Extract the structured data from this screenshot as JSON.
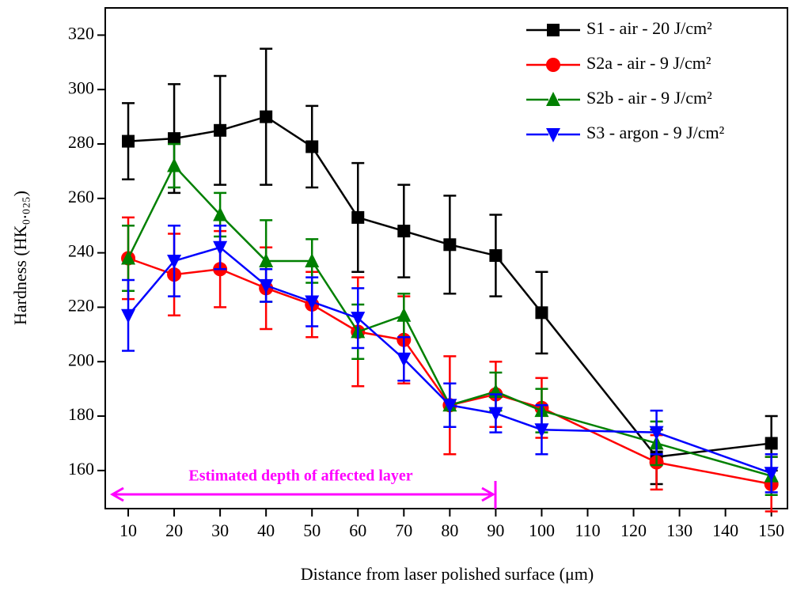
{
  "chart_data": {
    "type": "line",
    "xlabel": "Distance from laser polished surface (μm)",
    "ylabel": "Hardness (HK₀.₀₂₅)",
    "x": [
      10,
      20,
      30,
      40,
      50,
      60,
      70,
      80,
      90,
      100,
      125,
      150
    ],
    "series": [
      {
        "name": "S1 - air - 20 J/cm²",
        "color": "#000000",
        "marker": "square",
        "values": [
          281,
          282,
          285,
          290,
          279,
          253,
          248,
          243,
          239,
          218,
          165,
          170
        ],
        "errors": [
          14,
          20,
          20,
          25,
          15,
          20,
          17,
          18,
          15,
          15,
          10,
          10
        ]
      },
      {
        "name": "S2a - air - 9 J/cm²",
        "color": "#ff0000",
        "marker": "circle",
        "values": [
          238,
          232,
          234,
          227,
          221,
          211,
          208,
          184,
          188,
          183,
          163,
          155
        ],
        "errors": [
          15,
          15,
          14,
          15,
          12,
          20,
          16,
          18,
          12,
          11,
          10,
          10
        ]
      },
      {
        "name": "S2b - air - 9 J/cm²",
        "color": "#008000",
        "marker": "triangle-up",
        "values": [
          238,
          272,
          254,
          237,
          237,
          211,
          217,
          184,
          189,
          182,
          170,
          158
        ],
        "errors": [
          12,
          8,
          8,
          15,
          8,
          10,
          8,
          8,
          7,
          8,
          8,
          7
        ]
      },
      {
        "name": "S3 - argon - 9 J/cm²",
        "color": "#0000ff",
        "marker": "triangle-down",
        "values": [
          217,
          237,
          242,
          228,
          222,
          216,
          201,
          184,
          181,
          175,
          174,
          159
        ],
        "errors": [
          13,
          13,
          8,
          6,
          9,
          11,
          8,
          8,
          7,
          9,
          8,
          7
        ]
      }
    ],
    "annotation": "Estimated depth of affected layer",
    "annotation_color": "#ff00ff",
    "xlim": [
      5,
      153.5
    ],
    "xticks": [
      10,
      20,
      30,
      40,
      50,
      60,
      70,
      80,
      90,
      100,
      110,
      120,
      130,
      140,
      150
    ],
    "ylim": [
      146,
      330
    ],
    "yticks": [
      160,
      180,
      200,
      220,
      240,
      260,
      280,
      300,
      320
    ],
    "legend": "upper right"
  }
}
